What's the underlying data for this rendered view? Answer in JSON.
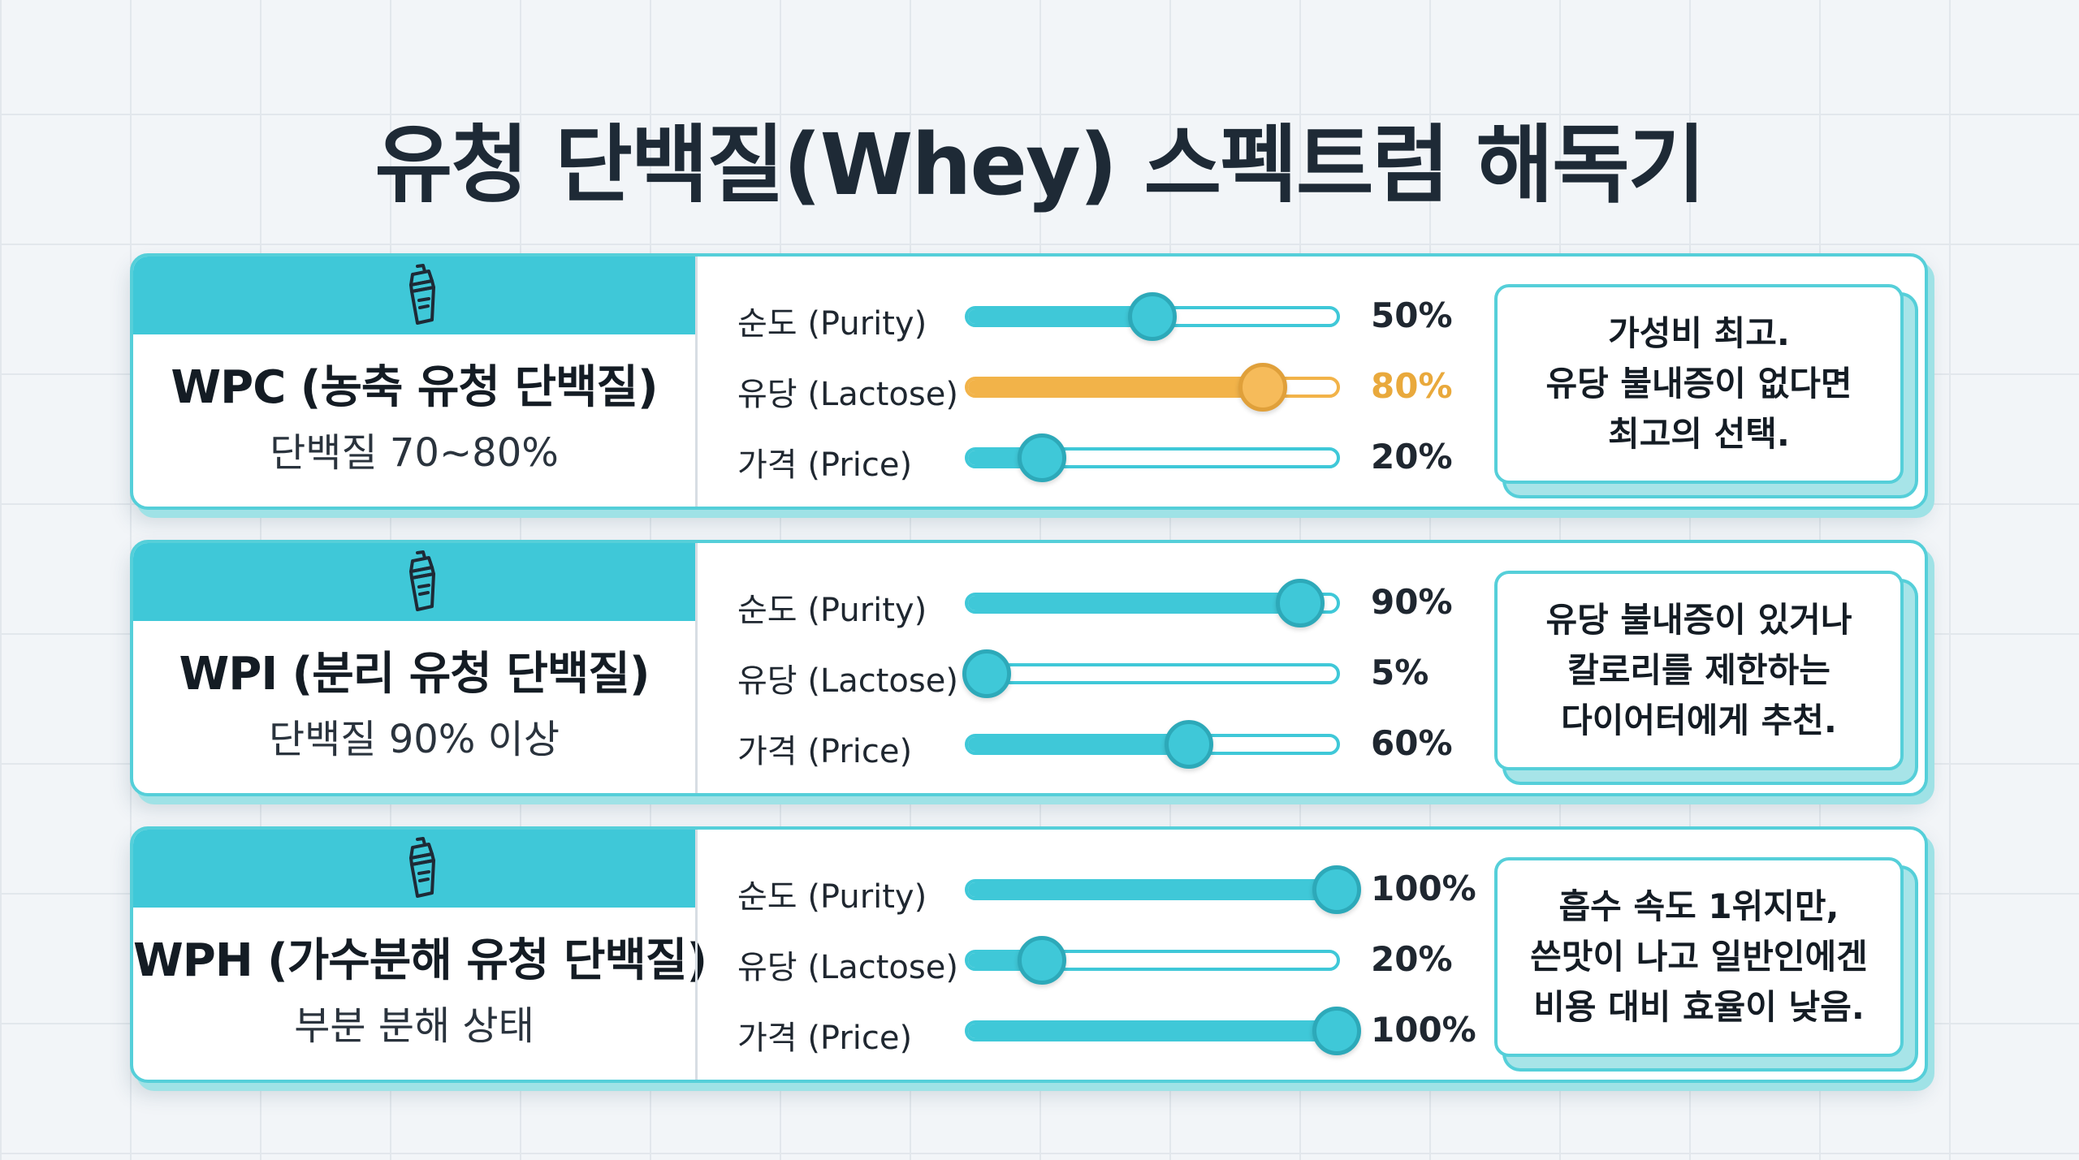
{
  "title": "유청 단백질(Whey) 스펙트럼 해독기",
  "colors": {
    "accent": "#3fc8d8",
    "highlight": "#f2b349",
    "border": "#55cfd9"
  },
  "row_labels": {
    "purity": "순도 (Purity)",
    "lactose": "유당 (Lactose)",
    "price": "가격 (Price)"
  },
  "cards": [
    {
      "icon": "shaker-icon",
      "name": "WPC (농축 유청 단백질)",
      "sub": "단백질 70~80%",
      "purity": {
        "value": 50,
        "label": "50%"
      },
      "lactose": {
        "value": 80,
        "label": "80%",
        "highlight": true
      },
      "price": {
        "value": 20,
        "label": "20%"
      },
      "note": "가성비 최고.\n유당 불내증이 없다면\n최고의 선택."
    },
    {
      "icon": "shaker-icon",
      "name": "WPI (분리 유청 단백질)",
      "sub": "단백질 90% 이상",
      "purity": {
        "value": 90,
        "label": "90%"
      },
      "lactose": {
        "value": 5,
        "label": "5%"
      },
      "price": {
        "value": 60,
        "label": "60%"
      },
      "note": "유당 불내증이 있거나\n칼로리를 제한하는\n다이어터에게 추천."
    },
    {
      "icon": "shaker-icon",
      "name": "WPH (가수분해 유청 단백질)",
      "sub": "부분 분해 상태",
      "purity": {
        "value": 100,
        "label": "100%"
      },
      "lactose": {
        "value": 20,
        "label": "20%"
      },
      "price": {
        "value": 100,
        "label": "100%"
      },
      "note": "흡수 속도 1위지만,\n쓴맛이 나고 일반인에겐\n비용 대비 효율이 낮음."
    }
  ]
}
